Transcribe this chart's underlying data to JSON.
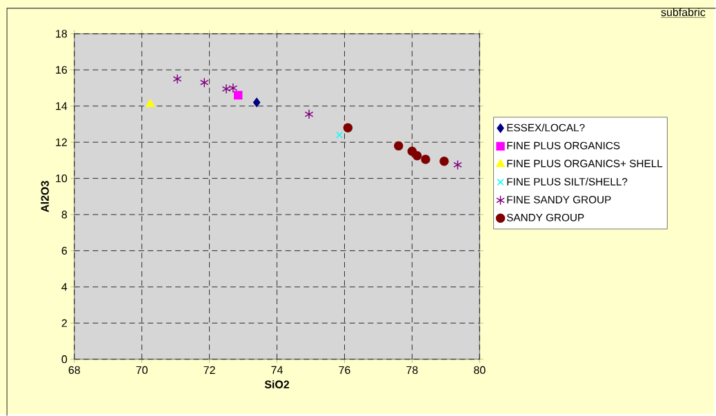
{
  "chart_data": {
    "type": "scatter",
    "xlabel": "SiO2",
    "ylabel": "Al2O3",
    "legend_title": "subfabric",
    "xlim": [
      68,
      80
    ],
    "xticks": [
      68,
      70,
      72,
      74,
      76,
      78,
      80
    ],
    "ylim": [
      0,
      18
    ],
    "yticks": [
      0,
      2,
      4,
      6,
      8,
      10,
      12,
      14,
      16,
      18
    ],
    "grid": true,
    "legend": "right",
    "series": [
      {
        "name": "ESSEX/LOCAL?",
        "color": "#000080",
        "marker": "diamond",
        "x": [
          73.4
        ],
        "values": [
          14.2
        ]
      },
      {
        "name": "FINE PLUS ORGANICS",
        "color": "#ff00ff",
        "marker": "square",
        "x": [
          72.85
        ],
        "values": [
          14.6
        ]
      },
      {
        "name": "FINE PLUS ORGANICS+ SHELL",
        "color": "#ffff00",
        "marker": "triangle",
        "x": [
          70.25
        ],
        "values": [
          14.1
        ]
      },
      {
        "name": "FINE PLUS SILT/SHELL?",
        "color": "#00ffff",
        "marker": "cross",
        "x": [
          75.85
        ],
        "values": [
          12.4
        ]
      },
      {
        "name": "FINE SANDY GROUP",
        "color": "#800080",
        "marker": "cross",
        "x": [
          71.05,
          71.85,
          72.5,
          72.7,
          74.95,
          79.35
        ],
        "values": [
          15.5,
          15.3,
          14.95,
          15.0,
          13.55,
          10.75
        ]
      },
      {
        "name": "SANDY GROUP",
        "color": "#800000",
        "marker": "circle",
        "x": [
          76.1,
          77.6,
          78.0,
          78.15,
          78.4,
          78.95
        ],
        "values": [
          12.8,
          11.8,
          11.5,
          11.25,
          11.05,
          10.95
        ]
      }
    ]
  }
}
